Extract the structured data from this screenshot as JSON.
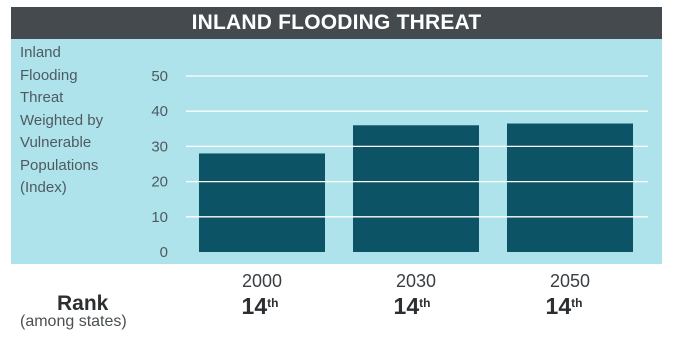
{
  "title": "INLAND FLOODING THREAT",
  "colors": {
    "header_bg": "#454a4e",
    "plot_bg": "#aee3ec",
    "bar": "#0d5366",
    "gridline": "#ffffff"
  },
  "chart_data": {
    "type": "bar",
    "title": "INLAND FLOODING THREAT",
    "ylabel_lines": [
      "Inland",
      "Flooding",
      "Threat",
      "Weighted by",
      "Vulnerable",
      "Populations",
      "(Index)"
    ],
    "xlabel": "",
    "categories": [
      "2000",
      "2030",
      "2050"
    ],
    "values": [
      28,
      36,
      36.5
    ],
    "ylim": [
      0,
      50
    ],
    "yticks": [
      0,
      10,
      20,
      30,
      40,
      50
    ],
    "grid": true
  },
  "rank": {
    "title": "Rank",
    "subtitle": "(among states)",
    "values": [
      {
        "num": "14",
        "suffix": "th"
      },
      {
        "num": "14",
        "suffix": "th"
      },
      {
        "num": "14",
        "suffix": "th"
      }
    ]
  }
}
